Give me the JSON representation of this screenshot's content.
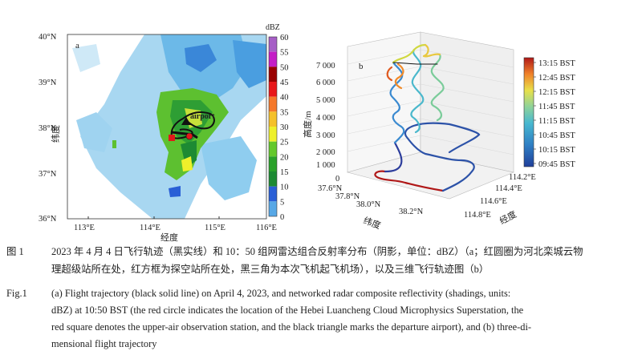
{
  "panel_a": {
    "label": "a",
    "airport_label": "airport",
    "lon_ticks": [
      "113°E",
      "114°E",
      "115°E",
      "116°E"
    ],
    "lat_ticks": [
      "40°N",
      "39°N",
      "38°N",
      "37°N",
      "36°N"
    ],
    "xlabel": "经度",
    "ylabel": "纬度",
    "colorbar_title": "dBZ",
    "colorbar_ticks": [
      "60",
      "55",
      "50",
      "45",
      "40",
      "35",
      "30",
      "25",
      "20",
      "15",
      "10",
      "5",
      "0"
    ],
    "colorbar_colors": [
      "#a65ec6",
      "#c41ec6",
      "#990000",
      "#e8171a",
      "#f5782a",
      "#f5c12a",
      "#eef02b",
      "#64c82c",
      "#2aa12a",
      "#1d8a33",
      "#2a5fd6",
      "#57a8e6",
      "#8fd1f2"
    ]
  },
  "panel_b": {
    "label": "b",
    "z_ticks": [
      "7 000",
      "6 000",
      "5 000",
      "4 000",
      "3 000",
      "2 000",
      "1 000",
      "0"
    ],
    "zlabel": "高度/m",
    "lat_ticks": [
      "37.6°N",
      "37.8°N",
      "38.0°N",
      "38.2°N"
    ],
    "lat_label": "纬度",
    "lon_ticks": [
      "114.2°E",
      "114.4°E",
      "114.6°E",
      "114.8°E"
    ],
    "lon_label": "经度",
    "colorbar_ticks": [
      "13:15 BST",
      "12:45 BST",
      "12:15 BST",
      "11:45 BST",
      "11:15 BST",
      "10:45 BST",
      "10:15 BST",
      "09:45 BST"
    ]
  },
  "caption": {
    "cn_label": "图 1",
    "cn_line1": "2023 年 4 月 4 日飞行轨迹（黑实线）和 10：50 组网雷达组合反射率分布（阴影，单位：dBZ）（a；红圆圈为河北栾城云物",
    "cn_line2": "理超级站所在处，红方框为探空站所在处，黑三角为本次飞机起飞机场），以及三维飞行轨迹图（b）",
    "en_label": "Fig.1",
    "en_line1": "(a) Flight trajectory (black solid line) on April 4, 2023, and networked radar composite reflectivity (shadings, units:",
    "en_line2": "dBZ) at 10:50 BST (the red circle indicates the location of the Hebei Luancheng Cloud Microphysics Superstation, the",
    "en_line3": "red square denotes the upper-air observation station, and the black triangle marks the departure airport), and (b) three-di-",
    "en_line4": "mensional flight trajectory"
  }
}
